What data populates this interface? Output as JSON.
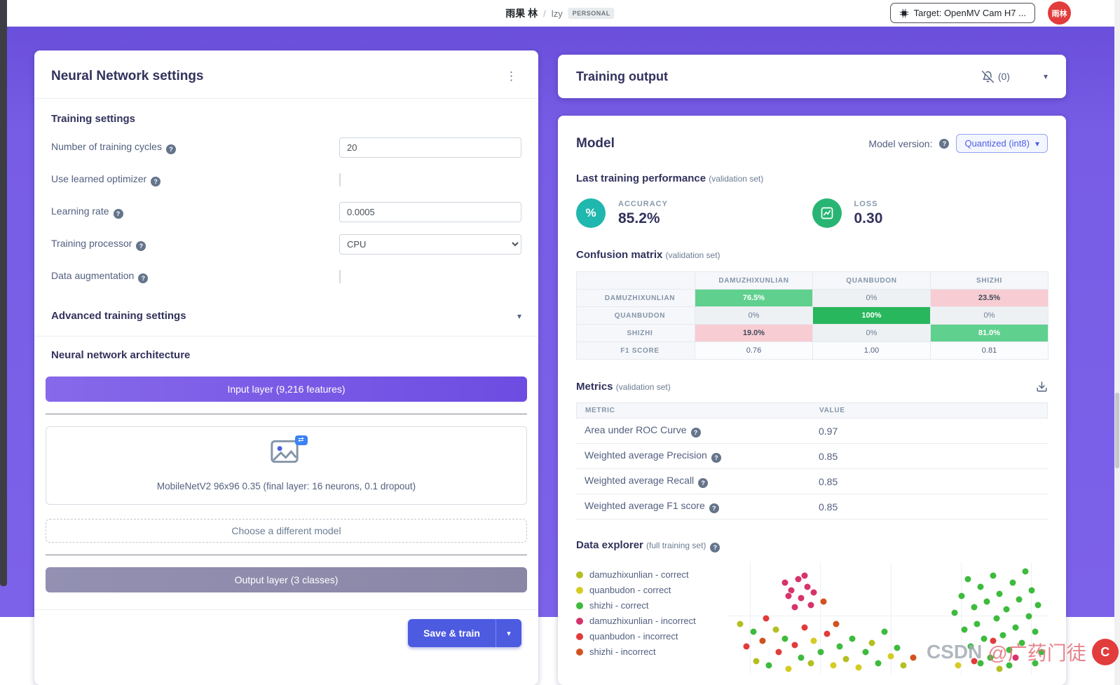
{
  "header": {
    "breadcrumb": {
      "user": "雨果 林",
      "separator": "/",
      "project": "lzy",
      "badge": "PERSONAL"
    },
    "target_button_label": "Target: OpenMV Cam H7 ...",
    "avatar_initials": "雨林"
  },
  "nn": {
    "title": "Neural Network settings",
    "training_section_title": "Training settings",
    "fields": {
      "cycles": {
        "label": "Number of training cycles",
        "value": "20"
      },
      "optimizer": {
        "label": "Use learned optimizer",
        "checked": false
      },
      "learning_rate": {
        "label": "Learning rate",
        "value": "0.0005"
      },
      "processor": {
        "label": "Training processor",
        "value": "CPU"
      },
      "augmentation": {
        "label": "Data augmentation",
        "checked": false
      }
    },
    "advanced_section_title": "Advanced training settings",
    "architecture_section_title": "Neural network architecture",
    "input_layer_label": "Input layer (9,216 features)",
    "model_description": "MobileNetV2 96x96 0.35 (final layer: 16 neurons, 0.1 dropout)",
    "choose_model_label": "Choose a different model",
    "output_layer_label": "Output layer (3 classes)",
    "save_train_label": "Save & train"
  },
  "output_panel": {
    "title": "Training output",
    "notifications_count": "(0)"
  },
  "model": {
    "title": "Model",
    "version_label": "Model version:",
    "version_value": "Quantized (int8)",
    "performance_title": "Last training performance",
    "performance_subtitle": "(validation set)",
    "accuracy_label": "ACCURACY",
    "accuracy_value": "85.2%",
    "loss_label": "LOSS",
    "loss_value": "0.30",
    "confusion_title": "Confusion matrix",
    "confusion_subtitle": "(validation set)",
    "confusion": {
      "columns": [
        "DAMUZHIXUNLIAN",
        "QUANBUDON",
        "SHIZHI"
      ],
      "rows": [
        {
          "label": "DAMUZHIXUNLIAN",
          "cells": [
            "76.5%",
            "0%",
            "23.5%"
          ]
        },
        {
          "label": "QUANBUDON",
          "cells": [
            "0%",
            "100%",
            "0%"
          ]
        },
        {
          "label": "SHIZHI",
          "cells": [
            "19.0%",
            "0%",
            "81.0%"
          ]
        },
        {
          "label": "F1 SCORE",
          "cells": [
            "0.76",
            "1.00",
            "0.81"
          ]
        }
      ]
    },
    "metrics_title": "Metrics",
    "metrics_subtitle": "(validation set)",
    "metrics": {
      "columns": [
        "METRIC",
        "VALUE"
      ],
      "rows": [
        {
          "label": "Area under ROC Curve",
          "value": "0.97"
        },
        {
          "label": "Weighted average Precision",
          "value": "0.85"
        },
        {
          "label": "Weighted average Recall",
          "value": "0.85"
        },
        {
          "label": "Weighted average F1 score",
          "value": "0.85"
        }
      ]
    },
    "explorer_title": "Data explorer",
    "explorer_subtitle": "(full training set)"
  },
  "chart_data": {
    "type": "scatter",
    "title": "Data explorer (full training set)",
    "grid": true,
    "axes_visible": false,
    "legend_position": "left",
    "legend": [
      {
        "label": "damuzhixunlian - correct",
        "color": "#b3bf22"
      },
      {
        "label": "quanbudon - correct",
        "color": "#d6cb22"
      },
      {
        "label": "shizhi - correct",
        "color": "#3dbb3d"
      },
      {
        "label": "damuzhixunlian - incorrect",
        "color": "#d6336c"
      },
      {
        "label": "quanbudon - incorrect",
        "color": "#e23b3b"
      },
      {
        "label": "shizhi - incorrect",
        "color": "#d2521f"
      }
    ],
    "points": [
      {
        "x": 4,
        "y": 55,
        "c": 0
      },
      {
        "x": 6,
        "y": 75,
        "c": 4
      },
      {
        "x": 8,
        "y": 62,
        "c": 2
      },
      {
        "x": 9,
        "y": 88,
        "c": 0
      },
      {
        "x": 11,
        "y": 70,
        "c": 5
      },
      {
        "x": 12,
        "y": 50,
        "c": 4
      },
      {
        "x": 13,
        "y": 92,
        "c": 2
      },
      {
        "x": 15,
        "y": 60,
        "c": 0
      },
      {
        "x": 16,
        "y": 80,
        "c": 4
      },
      {
        "x": 18,
        "y": 68,
        "c": 2
      },
      {
        "x": 19,
        "y": 95,
        "c": 1
      },
      {
        "x": 21,
        "y": 74,
        "c": 4
      },
      {
        "x": 23,
        "y": 85,
        "c": 2
      },
      {
        "x": 24,
        "y": 58,
        "c": 4
      },
      {
        "x": 26,
        "y": 90,
        "c": 0
      },
      {
        "x": 27,
        "y": 70,
        "c": 1
      },
      {
        "x": 29,
        "y": 80,
        "c": 2
      },
      {
        "x": 31,
        "y": 64,
        "c": 4
      },
      {
        "x": 33,
        "y": 92,
        "c": 1
      },
      {
        "x": 35,
        "y": 75,
        "c": 2
      },
      {
        "x": 37,
        "y": 86,
        "c": 0
      },
      {
        "x": 39,
        "y": 68,
        "c": 2
      },
      {
        "x": 41,
        "y": 94,
        "c": 1
      },
      {
        "x": 43,
        "y": 80,
        "c": 2
      },
      {
        "x": 45,
        "y": 72,
        "c": 0
      },
      {
        "x": 47,
        "y": 90,
        "c": 2
      },
      {
        "x": 49,
        "y": 62,
        "c": 2
      },
      {
        "x": 51,
        "y": 84,
        "c": 1
      },
      {
        "x": 53,
        "y": 76,
        "c": 2
      },
      {
        "x": 55,
        "y": 92,
        "c": 0
      },
      {
        "x": 18,
        "y": 18,
        "c": 3
      },
      {
        "x": 20,
        "y": 25,
        "c": 3
      },
      {
        "x": 22,
        "y": 15,
        "c": 3
      },
      {
        "x": 23,
        "y": 32,
        "c": 3
      },
      {
        "x": 25,
        "y": 22,
        "c": 3
      },
      {
        "x": 26,
        "y": 38,
        "c": 3
      },
      {
        "x": 24,
        "y": 12,
        "c": 3
      },
      {
        "x": 21,
        "y": 40,
        "c": 3
      },
      {
        "x": 19,
        "y": 30,
        "c": 3
      },
      {
        "x": 27,
        "y": 27,
        "c": 3
      },
      {
        "x": 30,
        "y": 35,
        "c": 5
      },
      {
        "x": 34,
        "y": 55,
        "c": 5
      },
      {
        "x": 58,
        "y": 85,
        "c": 5
      },
      {
        "x": 71,
        "y": 45,
        "c": 2
      },
      {
        "x": 73,
        "y": 30,
        "c": 2
      },
      {
        "x": 74,
        "y": 60,
        "c": 2
      },
      {
        "x": 75,
        "y": 15,
        "c": 2
      },
      {
        "x": 76,
        "y": 75,
        "c": 2
      },
      {
        "x": 77,
        "y": 40,
        "c": 2
      },
      {
        "x": 78,
        "y": 55,
        "c": 2
      },
      {
        "x": 79,
        "y": 22,
        "c": 2
      },
      {
        "x": 80,
        "y": 68,
        "c": 2
      },
      {
        "x": 81,
        "y": 35,
        "c": 2
      },
      {
        "x": 82,
        "y": 85,
        "c": 2
      },
      {
        "x": 83,
        "y": 12,
        "c": 2
      },
      {
        "x": 84,
        "y": 50,
        "c": 2
      },
      {
        "x": 85,
        "y": 28,
        "c": 2
      },
      {
        "x": 86,
        "y": 65,
        "c": 2
      },
      {
        "x": 87,
        "y": 42,
        "c": 2
      },
      {
        "x": 88,
        "y": 78,
        "c": 2
      },
      {
        "x": 89,
        "y": 18,
        "c": 2
      },
      {
        "x": 90,
        "y": 58,
        "c": 2
      },
      {
        "x": 91,
        "y": 33,
        "c": 2
      },
      {
        "x": 92,
        "y": 72,
        "c": 2
      },
      {
        "x": 93,
        "y": 8,
        "c": 2
      },
      {
        "x": 94,
        "y": 48,
        "c": 2
      },
      {
        "x": 95,
        "y": 25,
        "c": 2
      },
      {
        "x": 96,
        "y": 62,
        "c": 2
      },
      {
        "x": 97,
        "y": 38,
        "c": 2
      },
      {
        "x": 98,
        "y": 80,
        "c": 2
      },
      {
        "x": 96,
        "y": 90,
        "c": 2
      },
      {
        "x": 88,
        "y": 92,
        "c": 2
      },
      {
        "x": 79,
        "y": 90,
        "c": 2
      },
      {
        "x": 83,
        "y": 70,
        "c": 4
      },
      {
        "x": 90,
        "y": 85,
        "c": 3
      },
      {
        "x": 77,
        "y": 88,
        "c": 4
      },
      {
        "x": 72,
        "y": 92,
        "c": 1
      },
      {
        "x": 85,
        "y": 95,
        "c": 0
      }
    ]
  },
  "watermark": {
    "brand": "CSDN",
    "handle": "@广药门徒",
    "logo": "C"
  },
  "colors": {
    "accent_purple": "#6c4ee0",
    "save_button": "#4c5be0",
    "accuracy_icon": "#1fb7ae",
    "loss_icon": "#28b574",
    "matrix_good": "#5fd08e",
    "matrix_perfect": "#28b75c",
    "matrix_bad": "#f8ccd3"
  }
}
